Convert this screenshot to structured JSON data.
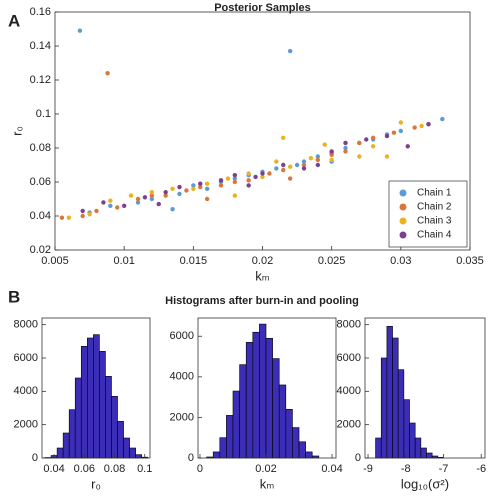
{
  "panel_labels": [
    "A",
    "B"
  ],
  "section_title": "Histograms after burn-in and pooling",
  "chart_data": [
    {
      "type": "scatter",
      "title": "Posterior Samples",
      "xlabel": "kₘ",
      "ylabel": "r₀",
      "xlim": [
        0.005,
        0.035
      ],
      "xticks": [
        0.005,
        0.01,
        0.015,
        0.02,
        0.025,
        0.03,
        0.035
      ],
      "ylim": [
        0.02,
        0.16
      ],
      "yticks": [
        0.02,
        0.04,
        0.06,
        0.08,
        0.1,
        0.12,
        0.14,
        0.16
      ],
      "legend": "lower right",
      "series": [
        {
          "name": "Chain 1",
          "color": "#5b9bd5",
          "x": [
            0.0068,
            0.022,
            0.033,
            0.032,
            0.0075,
            0.009,
            0.011,
            0.012,
            0.014,
            0.015,
            0.016,
            0.017,
            0.018,
            0.019,
            0.02,
            0.021,
            0.0225,
            0.023,
            0.024,
            0.025,
            0.026,
            0.027,
            0.028,
            0.029,
            0.03,
            0.0135,
            0.025
          ],
          "values": [
            0.149,
            0.137,
            0.097,
            0.094,
            0.042,
            0.046,
            0.048,
            0.05,
            0.053,
            0.058,
            0.056,
            0.06,
            0.062,
            0.064,
            0.066,
            0.068,
            0.07,
            0.072,
            0.075,
            0.077,
            0.08,
            0.083,
            0.085,
            0.088,
            0.09,
            0.044,
            0.072
          ]
        },
        {
          "name": "Chain 2",
          "color": "#d9773a",
          "x": [
            0.0088,
            0.0055,
            0.007,
            0.008,
            0.0095,
            0.011,
            0.012,
            0.013,
            0.0145,
            0.0155,
            0.017,
            0.018,
            0.019,
            0.0205,
            0.0215,
            0.023,
            0.024,
            0.025,
            0.026,
            0.027,
            0.028,
            0.0295,
            0.031,
            0.016,
            0.022
          ],
          "values": [
            0.124,
            0.039,
            0.04,
            0.043,
            0.045,
            0.05,
            0.052,
            0.052,
            0.055,
            0.057,
            0.058,
            0.06,
            0.061,
            0.065,
            0.067,
            0.07,
            0.073,
            0.076,
            0.078,
            0.083,
            0.086,
            0.089,
            0.092,
            0.05,
            0.062
          ]
        },
        {
          "name": "Chain 3",
          "color": "#edb120",
          "x": [
            0.006,
            0.0075,
            0.009,
            0.0105,
            0.012,
            0.0135,
            0.015,
            0.016,
            0.0175,
            0.019,
            0.02,
            0.021,
            0.022,
            0.0235,
            0.0245,
            0.026,
            0.027,
            0.028,
            0.029,
            0.03,
            0.0315,
            0.0215,
            0.018,
            0.025
          ],
          "values": [
            0.039,
            0.041,
            0.049,
            0.052,
            0.054,
            0.056,
            0.056,
            0.059,
            0.062,
            0.065,
            0.063,
            0.072,
            0.069,
            0.074,
            0.082,
            0.083,
            0.075,
            0.081,
            0.075,
            0.095,
            0.093,
            0.086,
            0.052,
            0.073
          ]
        },
        {
          "name": "Chain 4",
          "color": "#7e3f8e",
          "x": [
            0.007,
            0.0085,
            0.01,
            0.0115,
            0.013,
            0.014,
            0.0155,
            0.017,
            0.018,
            0.019,
            0.02,
            0.0215,
            0.023,
            0.024,
            0.025,
            0.026,
            0.0275,
            0.029,
            0.0305,
            0.032,
            0.0125,
            0.0195
          ],
          "values": [
            0.043,
            0.048,
            0.046,
            0.051,
            0.054,
            0.057,
            0.059,
            0.061,
            0.064,
            0.058,
            0.065,
            0.07,
            0.068,
            0.07,
            0.078,
            0.083,
            0.085,
            0.087,
            0.081,
            0.094,
            0.047,
            0.063
          ]
        }
      ]
    },
    {
      "type": "histogram",
      "xlabel": "r₀",
      "color": "#3b2db5",
      "bins": [
        0.034,
        0.038,
        0.042,
        0.046,
        0.05,
        0.054,
        0.058,
        0.062,
        0.066,
        0.07,
        0.074,
        0.078,
        0.082,
        0.086,
        0.09,
        0.094,
        0.098,
        0.102
      ],
      "values": [
        30,
        150,
        600,
        1500,
        2900,
        4800,
        6700,
        7200,
        7400,
        6400,
        4900,
        3700,
        2200,
        1200,
        600,
        200,
        50
      ],
      "xlim": [
        0.032,
        0.1035
      ],
      "xticks": [
        0.04,
        0.06,
        0.08,
        0.1
      ],
      "ylim": [
        0,
        8400
      ],
      "yticks": [
        0,
        2000,
        4000,
        6000,
        8000
      ]
    },
    {
      "type": "histogram",
      "xlabel": "kₘ",
      "color": "#3b2db5",
      "bins": [
        0.002,
        0.004,
        0.006,
        0.008,
        0.01,
        0.012,
        0.014,
        0.016,
        0.018,
        0.02,
        0.022,
        0.024,
        0.026,
        0.028,
        0.03,
        0.032,
        0.034,
        0.036
      ],
      "values": [
        50,
        300,
        1000,
        2100,
        3300,
        4600,
        5700,
        6200,
        6600,
        5900,
        4900,
        3600,
        2400,
        1500,
        800,
        300,
        100
      ],
      "xlim": [
        -0.0006,
        0.0412
      ],
      "xticks": [
        0,
        0.02,
        0.04
      ],
      "ylim": [
        0,
        6900
      ],
      "yticks": [
        0,
        2000,
        4000,
        6000
      ]
    },
    {
      "type": "histogram",
      "xlabel": "log₁₀(σ²)",
      "color": "#3b2db5",
      "bins": [
        -8.8,
        -8.65,
        -8.5,
        -8.35,
        -8.2,
        -8.05,
        -7.9,
        -7.75,
        -7.6,
        -7.45,
        -7.3,
        -7.15,
        -7.0
      ],
      "values": [
        1200,
        6000,
        7900,
        7200,
        5300,
        3500,
        2100,
        1200,
        600,
        300,
        120,
        40
      ],
      "xlim": [
        -9.08,
        -5.9
      ],
      "xticks": [
        -9,
        -8,
        -7,
        -6
      ],
      "ylim": [
        0,
        8400
      ],
      "yticks": [
        0,
        2000,
        4000,
        6000,
        8000
      ]
    }
  ]
}
